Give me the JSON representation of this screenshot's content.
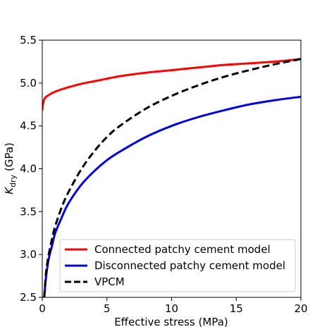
{
  "chart_data": {
    "type": "line",
    "xlabel": "Effective stress (MPa)",
    "ylabel_main": "K",
    "ylabel_sub": "dry",
    "ylabel_unit": " (GPa)",
    "xlim": [
      0,
      20
    ],
    "ylim": [
      2.5,
      5.5
    ],
    "xticks": [
      0,
      5,
      10,
      15,
      20
    ],
    "yticks": [
      2.5,
      3.0,
      3.5,
      4.0,
      4.5,
      5.0,
      5.5
    ],
    "xtick_labels": [
      "0",
      "5",
      "10",
      "15",
      "20"
    ],
    "ytick_labels": [
      "2.5",
      "3.0",
      "3.5",
      "4.0",
      "4.5",
      "5.0",
      "5.5"
    ],
    "grid": false,
    "legend_position": "lower-right",
    "series": [
      {
        "name": "Connected patchy cement model",
        "color": "#ff0000",
        "style": "solid",
        "x": [
          0,
          0.05,
          0.15,
          0.3,
          0.5,
          1,
          2,
          3,
          4,
          5,
          6,
          8,
          10,
          12,
          14,
          16,
          18,
          20
        ],
        "y": [
          4.68,
          4.75,
          4.81,
          4.84,
          4.86,
          4.9,
          4.95,
          4.99,
          5.02,
          5.05,
          5.08,
          5.12,
          5.15,
          5.18,
          5.21,
          5.23,
          5.25,
          5.28
        ]
      },
      {
        "name": "Disconnected patchy cement model",
        "color": "#0000dd",
        "style": "solid",
        "x": [
          0.15,
          0.3,
          0.5,
          0.75,
          1,
          1.5,
          2,
          3,
          4,
          5,
          6,
          8,
          10,
          12,
          14,
          16,
          18,
          20
        ],
        "y": [
          2.5,
          2.75,
          2.95,
          3.1,
          3.25,
          3.43,
          3.59,
          3.81,
          3.97,
          4.1,
          4.2,
          4.37,
          4.5,
          4.6,
          4.68,
          4.75,
          4.8,
          4.84
        ]
      },
      {
        "name": "VPCM",
        "color": "#000000",
        "style": "dashed",
        "x": [
          0.15,
          0.3,
          0.5,
          0.75,
          1,
          1.5,
          2,
          3,
          4,
          5,
          6,
          8,
          10,
          12,
          14,
          16,
          18,
          20
        ],
        "y": [
          2.5,
          2.8,
          3.0,
          3.18,
          3.33,
          3.55,
          3.72,
          3.99,
          4.2,
          4.37,
          4.5,
          4.7,
          4.85,
          4.97,
          5.07,
          5.15,
          5.22,
          5.28
        ]
      }
    ]
  }
}
